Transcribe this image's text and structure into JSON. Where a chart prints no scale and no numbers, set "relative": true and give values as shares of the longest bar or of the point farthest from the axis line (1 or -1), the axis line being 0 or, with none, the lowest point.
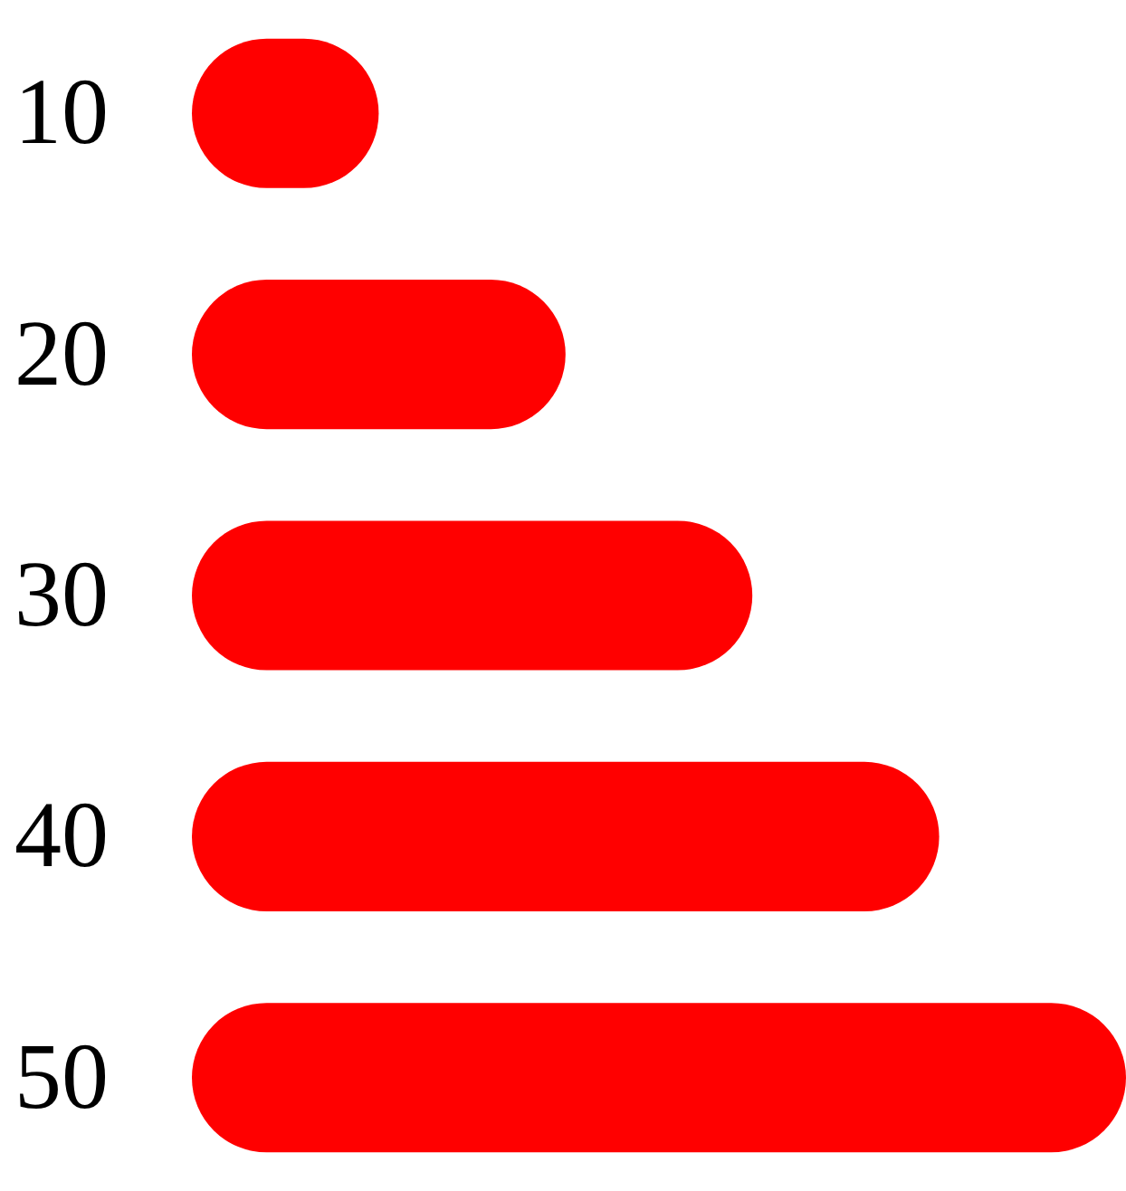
{
  "chart_data": {
    "type": "bar",
    "orientation": "horizontal",
    "relative": true,
    "categories": [
      "10",
      "20",
      "30",
      "40",
      "50"
    ],
    "values": [
      0.2,
      0.4,
      0.6,
      0.8,
      1
    ],
    "color": "#ff0000"
  }
}
